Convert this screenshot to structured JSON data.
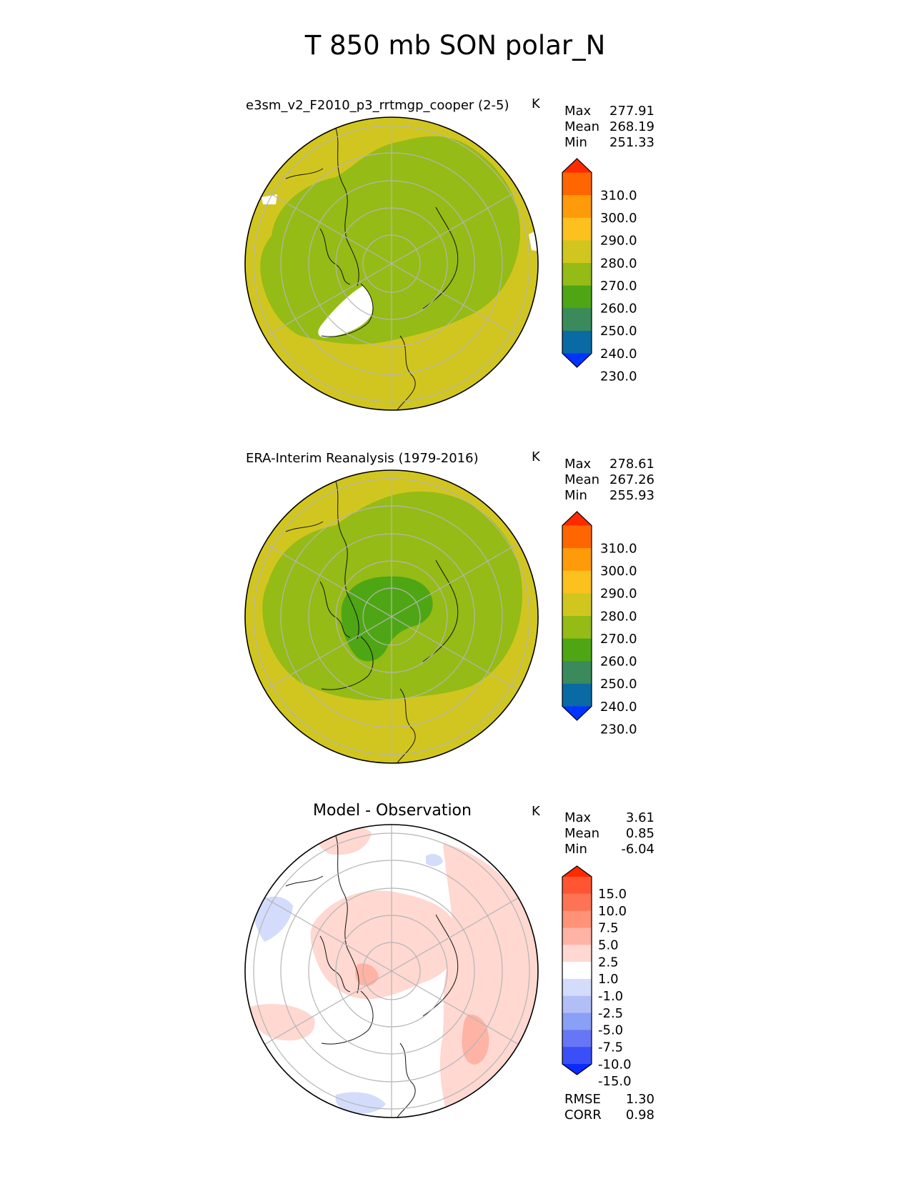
{
  "figure_title": "T 850 mb SON polar_N",
  "chart_data": [
    {
      "type": "polar_contour_map",
      "title": "e3sm_v2_F2010_p3_rrtmgp_cooper (2-5)",
      "units": "K",
      "stats": [
        {
          "label": "Max",
          "value": "277.91"
        },
        {
          "label": "Mean",
          "value": "268.19"
        },
        {
          "label": "Min",
          "value": "251.33"
        }
      ],
      "colorbar": {
        "levels": [
          "310.0",
          "300.0",
          "290.0",
          "280.0",
          "270.0",
          "260.0",
          "250.0",
          "240.0",
          "230.0"
        ],
        "colors": [
          "#ff2a00",
          "#ff6600",
          "#ff9a0a",
          "#fcc11e",
          "#d1c61f",
          "#95bb16",
          "#4ea614",
          "#3a8a5c",
          "#0a6aa3",
          "#0033ff"
        ]
      },
      "field_zones": [
        {
          "name": "outer",
          "color": "#d1c61f",
          "label": "270-280"
        },
        {
          "name": "inner",
          "color": "#95bb16",
          "label": "260-270"
        }
      ]
    },
    {
      "type": "polar_contour_map",
      "title": "ERA-Interim Reanalysis (1979-2016)",
      "units": "K",
      "stats": [
        {
          "label": "Max",
          "value": "278.61"
        },
        {
          "label": "Mean",
          "value": "267.26"
        },
        {
          "label": "Min",
          "value": "255.93"
        }
      ],
      "colorbar": {
        "levels": [
          "310.0",
          "300.0",
          "290.0",
          "280.0",
          "270.0",
          "260.0",
          "250.0",
          "240.0",
          "230.0"
        ],
        "colors": [
          "#ff2a00",
          "#ff6600",
          "#ff9a0a",
          "#fcc11e",
          "#d1c61f",
          "#95bb16",
          "#4ea614",
          "#3a8a5c",
          "#0a6aa3",
          "#0033ff"
        ]
      },
      "field_zones": [
        {
          "name": "outer",
          "color": "#d1c61f",
          "label": "270-280"
        },
        {
          "name": "inner",
          "color": "#95bb16",
          "label": "260-270"
        },
        {
          "name": "core",
          "color": "#4ea614",
          "label": "250-260"
        }
      ]
    },
    {
      "type": "polar_contour_map",
      "title": "Model - Observation",
      "units": "K",
      "stats": [
        {
          "label": "Max",
          "value": "3.61"
        },
        {
          "label": "Mean",
          "value": "0.85"
        },
        {
          "label": "Min",
          "value": "-6.04"
        }
      ],
      "colorbar": {
        "levels": [
          "15.0",
          "10.0",
          "7.5",
          "5.0",
          "2.5",
          "1.0",
          "-1.0",
          "-2.5",
          "-5.0",
          "-7.5",
          "-10.0",
          "-15.0"
        ],
        "colors": [
          "#ff2a00",
          "#ff5533",
          "#ff7355",
          "#ff9277",
          "#ffb3a4",
          "#ffd8d1",
          "#ffffff",
          "#d3dcfb",
          "#b2bff7",
          "#8a9ff6",
          "#6676f5",
          "#3a4ff7",
          "#0a2aff"
        ]
      },
      "metrics": [
        {
          "label": "RMSE",
          "value": "1.30"
        },
        {
          "label": "CORR",
          "value": "0.98"
        }
      ]
    }
  ]
}
